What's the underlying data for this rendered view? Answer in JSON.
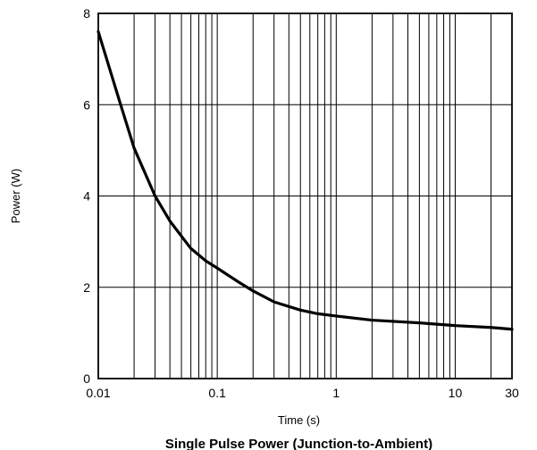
{
  "chart_data": {
    "type": "line",
    "title": "Single Pulse Power (Junction-to-Ambient)",
    "xlabel": "Time (s)",
    "ylabel": "Power (W)",
    "x_scale": "log",
    "xlim": [
      0.01,
      30
    ],
    "ylim": [
      0,
      8
    ],
    "grid": true,
    "x_tick_labels": [
      "0.01",
      "0.1",
      "1",
      "10",
      "30"
    ],
    "x_tick_values": [
      0.01,
      0.1,
      1,
      10,
      30
    ],
    "y_tick_labels": [
      "0",
      "2",
      "4",
      "6",
      "8"
    ],
    "y_tick_values": [
      0,
      2,
      4,
      6,
      8
    ],
    "series": [
      {
        "x": [
          0.01,
          0.015,
          0.02,
          0.03,
          0.04,
          0.06,
          0.08,
          0.1,
          0.15,
          0.2,
          0.3,
          0.5,
          0.7,
          1,
          2,
          5,
          10,
          20,
          30
        ],
        "y": [
          7.6,
          6.1,
          5.05,
          4.0,
          3.45,
          2.85,
          2.58,
          2.42,
          2.12,
          1.92,
          1.68,
          1.5,
          1.42,
          1.37,
          1.28,
          1.22,
          1.16,
          1.12,
          1.08
        ]
      }
    ],
    "colors": {
      "line": "#000000",
      "grid": "#000000",
      "frame": "#000000"
    }
  }
}
